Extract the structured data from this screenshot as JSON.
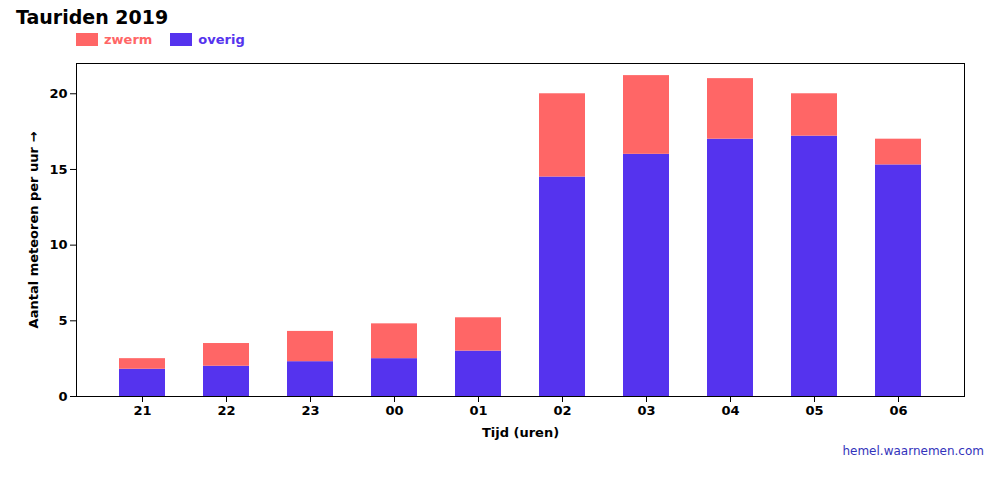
{
  "chart_data": {
    "type": "bar",
    "stacked": true,
    "title": "Tauriden 2019",
    "xlabel": "Tijd (uren)",
    "ylabel": "Aantal meteoren per uur",
    "categories": [
      "21",
      "22",
      "23",
      "00",
      "01",
      "02",
      "03",
      "04",
      "05",
      "06"
    ],
    "series": [
      {
        "name": "overig",
        "color": "#5533EE",
        "values": [
          1.8,
          2.0,
          2.3,
          2.5,
          3.0,
          14.5,
          16.0,
          17.0,
          17.2,
          15.3
        ]
      },
      {
        "name": "zwerm",
        "color": "#FF6666",
        "values": [
          0.7,
          1.5,
          2.0,
          2.3,
          2.2,
          5.5,
          5.2,
          4.0,
          2.8,
          1.7
        ]
      }
    ],
    "ylim": [
      0,
      22
    ],
    "yticks": [
      0,
      5,
      10,
      15,
      20
    ],
    "grid": false,
    "legend": "upper left",
    "annotations": [
      {
        "text": "hemel.waarnemen.com",
        "color": "#3333BB"
      }
    ]
  }
}
